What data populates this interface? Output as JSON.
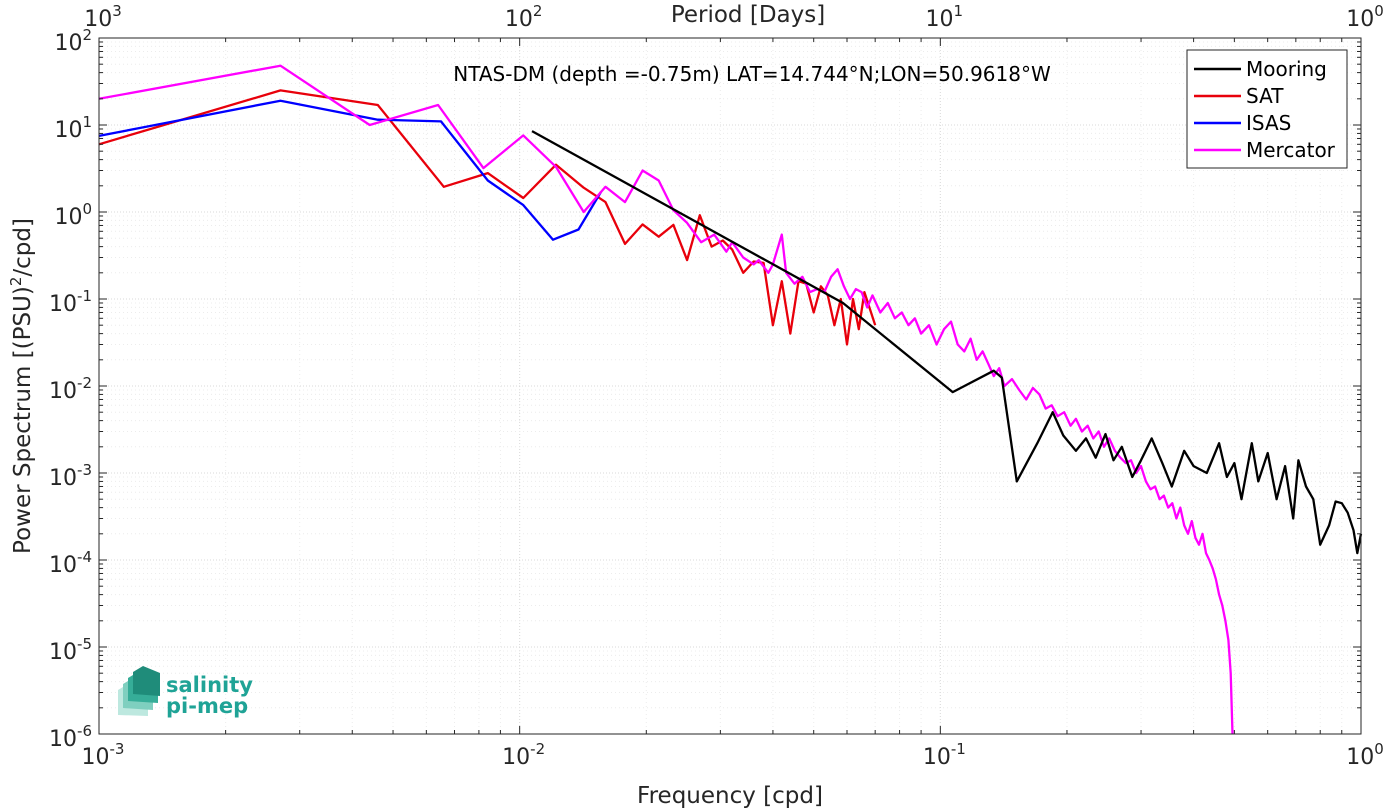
{
  "chart_data": {
    "type": "line",
    "title": "NTAS-DM (depth =-0.75m) LAT=14.744°N;LON=50.9618°W",
    "xlabel": "Frequency [cpd]",
    "ylabel_base": "Power Spectrum [(PSU)",
    "ylabel_sup": "2",
    "ylabel_tail": "/cpd]",
    "top_xlabel": "Period [Days]",
    "xscale": "log",
    "yscale": "log",
    "xlim": [
      0.001,
      1
    ],
    "ylim": [
      1e-06,
      100
    ],
    "grid": true,
    "legend_position": "top-right",
    "xticks": [
      {
        "value": 0.001,
        "base": "10",
        "exp": "-3"
      },
      {
        "value": 0.01,
        "base": "10",
        "exp": "-2"
      },
      {
        "value": 0.1,
        "base": "10",
        "exp": "-1"
      },
      {
        "value": 1,
        "base": "10",
        "exp": "0"
      }
    ],
    "top_ticks": [
      {
        "value": 0.001,
        "base": "10",
        "exp": "3"
      },
      {
        "value": 0.01,
        "base": "10",
        "exp": "2"
      },
      {
        "value": 0.1,
        "base": "10",
        "exp": "1"
      },
      {
        "value": 1,
        "base": "10",
        "exp": "0"
      }
    ],
    "yticks": [
      {
        "value": 100,
        "base": "10",
        "exp": "2"
      },
      {
        "value": 10,
        "base": "10",
        "exp": "1"
      },
      {
        "value": 1,
        "base": "10",
        "exp": "0"
      },
      {
        "value": 0.1,
        "base": "10",
        "exp": "-1"
      },
      {
        "value": 0.01,
        "base": "10",
        "exp": "-2"
      },
      {
        "value": 0.001,
        "base": "10",
        "exp": "-3"
      },
      {
        "value": 0.0001,
        "base": "10",
        "exp": "-4"
      },
      {
        "value": 1e-05,
        "base": "10",
        "exp": "-5"
      },
      {
        "value": 1e-06,
        "base": "10",
        "exp": "-6"
      }
    ],
    "series": [
      {
        "name": "Mooring",
        "color": "#000000",
        "points": [
          [
            0.0107,
            8.5
          ],
          [
            0.0587,
            0.09
          ],
          [
            0.107,
            0.0085
          ],
          [
            0.134,
            0.015
          ],
          [
            0.14,
            0.0125
          ],
          [
            0.152,
            0.0008
          ],
          [
            0.17,
            0.0022
          ],
          [
            0.185,
            0.005
          ],
          [
            0.196,
            0.0027
          ],
          [
            0.21,
            0.0018
          ],
          [
            0.222,
            0.0025
          ],
          [
            0.234,
            0.0015
          ],
          [
            0.247,
            0.0028
          ],
          [
            0.258,
            0.0014
          ],
          [
            0.27,
            0.002
          ],
          [
            0.286,
            0.0009
          ],
          [
            0.3,
            0.0014
          ],
          [
            0.318,
            0.0025
          ],
          [
            0.337,
            0.0013
          ],
          [
            0.355,
            0.0007
          ],
          [
            0.38,
            0.0018
          ],
          [
            0.4,
            0.0012
          ],
          [
            0.43,
            0.001
          ],
          [
            0.46,
            0.0022
          ],
          [
            0.48,
            0.0009
          ],
          [
            0.5,
            0.0013
          ],
          [
            0.52,
            0.0005
          ],
          [
            0.55,
            0.0022
          ],
          [
            0.57,
            0.0008
          ],
          [
            0.6,
            0.0017
          ],
          [
            0.63,
            0.0005
          ],
          [
            0.66,
            0.0012
          ],
          [
            0.69,
            0.0003
          ],
          [
            0.71,
            0.0014
          ],
          [
            0.74,
            0.0007
          ],
          [
            0.77,
            0.0005
          ],
          [
            0.8,
            0.00015
          ],
          [
            0.84,
            0.00025
          ],
          [
            0.87,
            0.00047
          ],
          [
            0.9,
            0.00045
          ],
          [
            0.93,
            0.00035
          ],
          [
            0.96,
            0.00022
          ],
          [
            0.98,
            0.00012
          ],
          [
            1.0,
            0.0002
          ]
        ]
      },
      {
        "name": "SAT",
        "color": "#e8000b",
        "points": [
          [
            0.001,
            6
          ],
          [
            0.0027,
            25
          ],
          [
            0.0046,
            17
          ],
          [
            0.0066,
            1.95
          ],
          [
            0.0084,
            2.8
          ],
          [
            0.0102,
            1.45
          ],
          [
            0.0122,
            3.5
          ],
          [
            0.0142,
            1.9
          ],
          [
            0.016,
            1.3
          ],
          [
            0.0178,
            0.43
          ],
          [
            0.0196,
            0.72
          ],
          [
            0.0214,
            0.52
          ],
          [
            0.0232,
            0.71
          ],
          [
            0.025,
            0.28
          ],
          [
            0.0268,
            0.92
          ],
          [
            0.0286,
            0.4
          ],
          [
            0.0304,
            0.47
          ],
          [
            0.032,
            0.37
          ],
          [
            0.034,
            0.2
          ],
          [
            0.036,
            0.27
          ],
          [
            0.038,
            0.26
          ],
          [
            0.04,
            0.05
          ],
          [
            0.042,
            0.16
          ],
          [
            0.044,
            0.04
          ],
          [
            0.046,
            0.16
          ],
          [
            0.048,
            0.15
          ],
          [
            0.05,
            0.07
          ],
          [
            0.052,
            0.14
          ],
          [
            0.054,
            0.11
          ],
          [
            0.056,
            0.05
          ],
          [
            0.058,
            0.1
          ],
          [
            0.06,
            0.03
          ],
          [
            0.062,
            0.1
          ],
          [
            0.064,
            0.045
          ],
          [
            0.066,
            0.12
          ],
          [
            0.07,
            0.05
          ]
        ]
      },
      {
        "name": "ISAS",
        "color": "#0000ff",
        "points": [
          [
            0.001,
            7.5
          ],
          [
            0.0027,
            19
          ],
          [
            0.0046,
            11.5
          ],
          [
            0.0065,
            11
          ],
          [
            0.0084,
            2.3
          ],
          [
            0.0102,
            1.2
          ],
          [
            0.012,
            0.48
          ],
          [
            0.0138,
            0.63
          ],
          [
            0.0156,
            1.7
          ]
        ]
      },
      {
        "name": "Mercator",
        "color": "#ff00ff",
        "points": [
          [
            0.001,
            20
          ],
          [
            0.0027,
            48
          ],
          [
            0.0044,
            10
          ],
          [
            0.0064,
            17
          ],
          [
            0.0082,
            3.2
          ],
          [
            0.0102,
            7.6
          ],
          [
            0.0122,
            3.3
          ],
          [
            0.0142,
            1.0
          ],
          [
            0.016,
            1.95
          ],
          [
            0.0178,
            1.3
          ],
          [
            0.0196,
            3
          ],
          [
            0.0214,
            2.3
          ],
          [
            0.0232,
            1.05
          ],
          [
            0.025,
            0.75
          ],
          [
            0.027,
            0.45
          ],
          [
            0.029,
            0.55
          ],
          [
            0.031,
            0.35
          ],
          [
            0.032,
            0.45
          ],
          [
            0.034,
            0.3
          ],
          [
            0.036,
            0.25
          ],
          [
            0.037,
            0.28
          ],
          [
            0.039,
            0.2
          ],
          [
            0.04,
            0.25
          ],
          [
            0.042,
            0.55
          ],
          [
            0.043,
            0.2
          ],
          [
            0.045,
            0.15
          ],
          [
            0.047,
            0.18
          ],
          [
            0.049,
            0.12
          ],
          [
            0.051,
            0.13
          ],
          [
            0.053,
            0.12
          ],
          [
            0.055,
            0.18
          ],
          [
            0.057,
            0.22
          ],
          [
            0.059,
            0.14
          ],
          [
            0.061,
            0.1
          ],
          [
            0.063,
            0.13
          ],
          [
            0.065,
            0.12
          ],
          [
            0.067,
            0.08
          ],
          [
            0.069,
            0.11
          ],
          [
            0.072,
            0.07
          ],
          [
            0.075,
            0.09
          ],
          [
            0.078,
            0.06
          ],
          [
            0.081,
            0.07
          ],
          [
            0.084,
            0.05
          ],
          [
            0.087,
            0.06
          ],
          [
            0.09,
            0.04
          ],
          [
            0.094,
            0.05
          ],
          [
            0.098,
            0.03
          ],
          [
            0.102,
            0.045
          ],
          [
            0.106,
            0.055
          ],
          [
            0.11,
            0.03
          ],
          [
            0.114,
            0.025
          ],
          [
            0.118,
            0.035
          ],
          [
            0.122,
            0.02
          ],
          [
            0.126,
            0.025
          ],
          [
            0.13,
            0.018
          ],
          [
            0.134,
            0.013
          ],
          [
            0.138,
            0.016
          ],
          [
            0.142,
            0.01
          ],
          [
            0.148,
            0.012
          ],
          [
            0.154,
            0.009
          ],
          [
            0.16,
            0.007
          ],
          [
            0.166,
            0.0095
          ],
          [
            0.172,
            0.008
          ],
          [
            0.178,
            0.0055
          ],
          [
            0.184,
            0.006
          ],
          [
            0.19,
            0.0045
          ],
          [
            0.197,
            0.005
          ],
          [
            0.204,
            0.0035
          ],
          [
            0.21,
            0.0042
          ],
          [
            0.217,
            0.003
          ],
          [
            0.224,
            0.0035
          ],
          [
            0.231,
            0.0025
          ],
          [
            0.238,
            0.003
          ],
          [
            0.245,
            0.002
          ],
          [
            0.252,
            0.0025
          ],
          [
            0.26,
            0.0018
          ],
          [
            0.268,
            0.0015
          ],
          [
            0.276,
            0.0013
          ],
          [
            0.284,
            0.0014
          ],
          [
            0.292,
            0.001
          ],
          [
            0.3,
            0.0012
          ],
          [
            0.308,
            0.0008
          ],
          [
            0.316,
            0.00065
          ],
          [
            0.324,
            0.0007
          ],
          [
            0.332,
            0.0005
          ],
          [
            0.34,
            0.00055
          ],
          [
            0.348,
            0.0004
          ],
          [
            0.356,
            0.00045
          ],
          [
            0.364,
            0.0003
          ],
          [
            0.372,
            0.0004
          ],
          [
            0.38,
            0.00025
          ],
          [
            0.388,
            0.0002
          ],
          [
            0.396,
            0.00028
          ],
          [
            0.404,
            0.00018
          ],
          [
            0.412,
            0.00015
          ],
          [
            0.42,
            0.0002
          ],
          [
            0.428,
            0.00012
          ],
          [
            0.436,
            0.0001
          ],
          [
            0.444,
            8e-05
          ],
          [
            0.452,
            6e-05
          ],
          [
            0.46,
            4e-05
          ],
          [
            0.468,
            3e-05
          ],
          [
            0.476,
            2e-05
          ],
          [
            0.484,
            1.2e-05
          ],
          [
            0.49,
            5e-06
          ],
          [
            0.495,
            1e-06
          ]
        ]
      }
    ]
  },
  "logo": {
    "line1": "salinity",
    "line2": "pi-mep"
  }
}
